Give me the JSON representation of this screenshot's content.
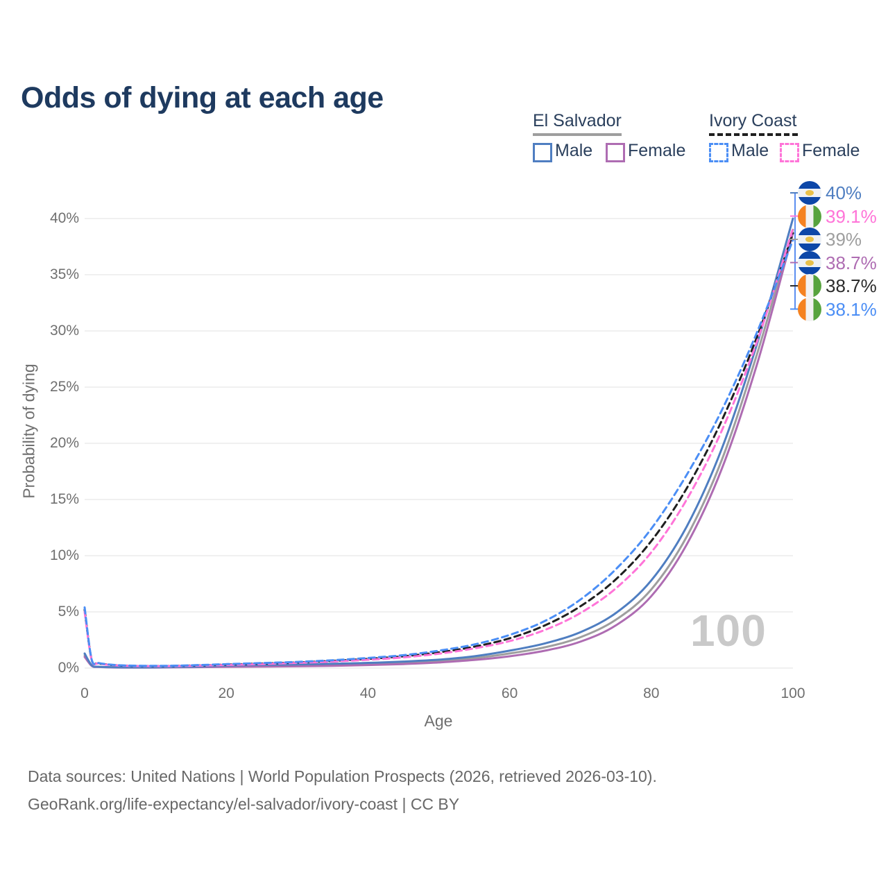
{
  "title": "Odds of dying at each age",
  "legend": {
    "groups": [
      {
        "name": "El Salvador",
        "style": "solid",
        "underline_color": "#9e9e9e",
        "items": [
          {
            "label": "Male",
            "color": "#4f7ec1",
            "dash": false
          },
          {
            "label": "Female",
            "color": "#ae6cb2",
            "dash": false
          }
        ]
      },
      {
        "name": "Ivory Coast",
        "style": "dashed",
        "underline_color": "#1f1f1f",
        "items": [
          {
            "label": "Male",
            "color": "#4b8ef5",
            "dash": true
          },
          {
            "label": "Female",
            "color": "#ff74d8",
            "dash": true
          }
        ]
      }
    ]
  },
  "chart_data": {
    "type": "line",
    "title": "Odds of dying at each age",
    "xlabel": "Age",
    "ylabel": "Probability of dying",
    "xlim": [
      0,
      100
    ],
    "ylim": [
      0,
      40
    ],
    "grid": "horizontal",
    "x_ticks": [
      "0",
      "20",
      "40",
      "60",
      "80",
      "100"
    ],
    "x_tick_values": [
      0,
      20,
      40,
      60,
      80,
      100
    ],
    "y_ticks": [
      "0%",
      "5%",
      "10%",
      "15%",
      "20%",
      "25%",
      "30%",
      "35%",
      "40%"
    ],
    "y_tick_values": [
      0,
      5,
      10,
      15,
      20,
      25,
      30,
      35,
      40
    ],
    "x": [
      0,
      1,
      2,
      5,
      10,
      15,
      20,
      25,
      30,
      35,
      40,
      45,
      50,
      55,
      60,
      65,
      70,
      75,
      80,
      85,
      90,
      95,
      100
    ],
    "series": [
      {
        "name": "El Salvador Both",
        "country": "El Salvador",
        "sex": "Both",
        "color": "#9e9e9e",
        "dashed": false,
        "end_label": "39%",
        "values": [
          1.15,
          0.22,
          0.11,
          0.06,
          0.06,
          0.1,
          0.17,
          0.2,
          0.24,
          0.29,
          0.36,
          0.47,
          0.62,
          0.88,
          1.3,
          1.85,
          2.75,
          4.3,
          7.0,
          11.7,
          18.6,
          28.1,
          39.0
        ]
      },
      {
        "name": "El Salvador Female",
        "country": "El Salvador",
        "sex": "Female",
        "color": "#ae6cb2",
        "dashed": false,
        "end_label": "38.7%",
        "values": [
          1.0,
          0.2,
          0.1,
          0.05,
          0.05,
          0.08,
          0.11,
          0.13,
          0.16,
          0.2,
          0.27,
          0.36,
          0.5,
          0.72,
          1.05,
          1.55,
          2.35,
          3.8,
          6.4,
          11.0,
          17.8,
          27.2,
          38.7
        ]
      },
      {
        "name": "El Salvador Male",
        "country": "El Salvador",
        "sex": "Male",
        "color": "#4f7ec1",
        "dashed": false,
        "end_label": "40%",
        "values": [
          1.3,
          0.25,
          0.12,
          0.07,
          0.07,
          0.12,
          0.22,
          0.28,
          0.32,
          0.38,
          0.46,
          0.58,
          0.75,
          1.05,
          1.55,
          2.2,
          3.2,
          4.9,
          7.8,
          12.6,
          19.6,
          29.0,
          40.0
        ]
      },
      {
        "name": "Ivory Coast Both",
        "country": "Ivory Coast",
        "sex": "Both",
        "color": "#1f1f1f",
        "dashed": true,
        "end_label": "38.7%",
        "values": [
          5.2,
          0.72,
          0.42,
          0.23,
          0.18,
          0.22,
          0.31,
          0.4,
          0.5,
          0.64,
          0.82,
          1.05,
          1.4,
          1.9,
          2.65,
          3.8,
          5.5,
          7.9,
          11.3,
          16.0,
          22.1,
          29.6,
          38.7
        ]
      },
      {
        "name": "Ivory Coast Female",
        "country": "Ivory Coast",
        "sex": "Female",
        "color": "#ff74d8",
        "dashed": true,
        "end_label": "39.1%",
        "values": [
          5.0,
          0.7,
          0.4,
          0.22,
          0.17,
          0.2,
          0.28,
          0.36,
          0.46,
          0.58,
          0.74,
          0.95,
          1.28,
          1.75,
          2.4,
          3.4,
          4.9,
          7.1,
          10.3,
          15.0,
          21.2,
          29.2,
          39.1
        ]
      },
      {
        "name": "Ivory Coast Male",
        "country": "Ivory Coast",
        "sex": "Male",
        "color": "#4b8ef5",
        "dashed": true,
        "end_label": "38.1%",
        "values": [
          5.4,
          0.75,
          0.45,
          0.25,
          0.2,
          0.25,
          0.35,
          0.45,
          0.55,
          0.7,
          0.9,
          1.15,
          1.55,
          2.1,
          2.95,
          4.2,
          6.1,
          8.8,
          12.4,
          17.2,
          23.0,
          30.0,
          38.1
        ]
      }
    ],
    "legend_position": "top-right"
  },
  "end_labels": [
    {
      "text": "40%",
      "flag": "el-salvador",
      "color": "#4f7ec1"
    },
    {
      "text": "39.1%",
      "flag": "ivory-coast",
      "color": "#ff74d8"
    },
    {
      "text": "39%",
      "flag": "el-salvador",
      "color": "#9e9e9e"
    },
    {
      "text": "38.7%",
      "flag": "el-salvador",
      "color": "#ae6cb2"
    },
    {
      "text": "38.7%",
      "flag": "ivory-coast",
      "color": "#2b2b2b"
    },
    {
      "text": "38.1%",
      "flag": "ivory-coast",
      "color": "#4b8ef5"
    }
  ],
  "watermark": "100",
  "footer": {
    "line1": "Data sources: United Nations | World Population Prospects (2026, retrieved 2026-03-10).",
    "line2": "GeoRank.org/life-expectancy/el-salvador/ivory-coast | CC BY"
  }
}
